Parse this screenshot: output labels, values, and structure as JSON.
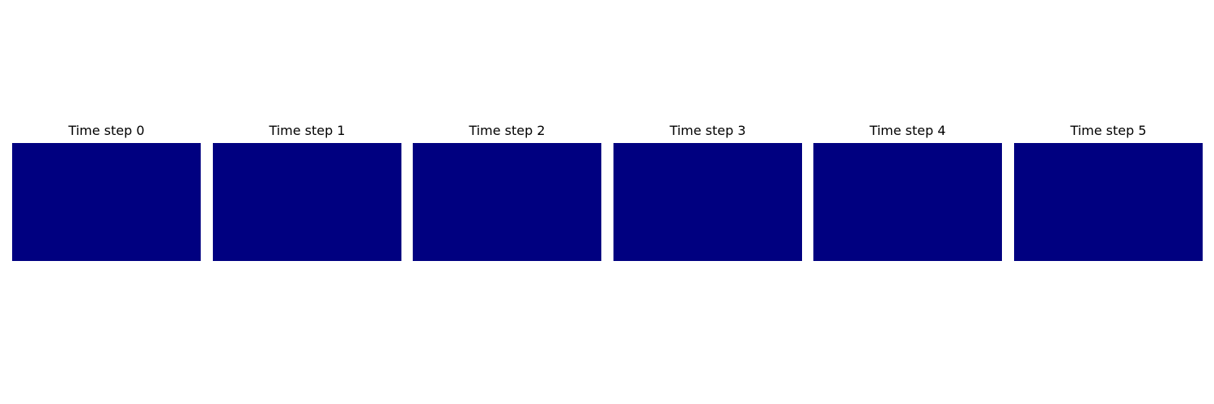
{
  "chart_data": {
    "type": "heatmap",
    "colormap": "jet",
    "panels": [
      {
        "title": "Time step 0",
        "fill_color": "#000080",
        "axis": "off"
      },
      {
        "title": "Time step 1",
        "fill_color": "#000080",
        "axis": "off"
      },
      {
        "title": "Time step 2",
        "fill_color": "#000080",
        "axis": "off"
      },
      {
        "title": "Time step 3",
        "fill_color": "#000080",
        "axis": "off"
      },
      {
        "title": "Time step 4",
        "fill_color": "#000080",
        "axis": "off"
      },
      {
        "title": "Time step 5",
        "fill_color": "#000080",
        "axis": "off"
      }
    ]
  }
}
